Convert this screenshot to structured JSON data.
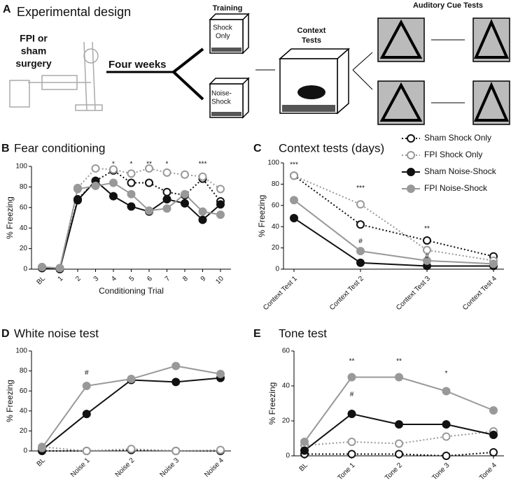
{
  "panel_a": {
    "letter": "A",
    "title": "Experimental design",
    "surgery": [
      "FPI or",
      "sham",
      "surgery"
    ],
    "interval": "Four weeks",
    "training": "Training",
    "shock_only": [
      "Shock",
      "Only"
    ],
    "noise_shock": [
      "Noise-",
      "Shock"
    ],
    "context": [
      "Context",
      "Tests"
    ],
    "auditory": "Auditory Cue Tests"
  },
  "chart_data": [
    {
      "type": "line",
      "panel": "B",
      "title": "Fear conditioning",
      "x_label": "Conditioning Trial",
      "y_label": "% Freezing",
      "categories": [
        "BL",
        "1",
        "2",
        "3",
        "4",
        "5",
        "6",
        "7",
        "8",
        "9",
        "10"
      ],
      "series": [
        {
          "name": "Sham Shock Only",
          "color": "#111111",
          "marker": "open",
          "dash": "dotted",
          "values": [
            2,
            1,
            68,
            86,
            96,
            84,
            84,
            75,
            72,
            88,
            66
          ]
        },
        {
          "name": "FPI Shock Only",
          "color": "#999999",
          "marker": "open",
          "dash": "dotted",
          "values": [
            2,
            1,
            79,
            98,
            97,
            93,
            98,
            94,
            92,
            90,
            78
          ]
        },
        {
          "name": "Sham Noise-Shock",
          "color": "#111111",
          "marker": "filled",
          "dash": "solid",
          "values": [
            1,
            0,
            67,
            86,
            71,
            61,
            56,
            68,
            64,
            48,
            63
          ]
        },
        {
          "name": "FPI Noise-Shock",
          "color": "#999999",
          "marker": "filled",
          "dash": "solid",
          "values": [
            2,
            1,
            78,
            81,
            84,
            73,
            57,
            59,
            73,
            56,
            53
          ]
        }
      ],
      "ylim": [
        0,
        100
      ],
      "yticks": [
        0,
        20,
        40,
        60,
        80,
        100
      ],
      "annotations": [
        {
          "text": "*",
          "category": "4",
          "y": 102
        },
        {
          "text": "*",
          "category": "5",
          "y": 102
        },
        {
          "text": "**",
          "category": "6",
          "y": 102
        },
        {
          "text": "*",
          "category": "7",
          "y": 102
        },
        {
          "text": "***",
          "category": "9",
          "y": 102
        }
      ]
    },
    {
      "type": "line",
      "panel": "C",
      "title": "Context tests (days)",
      "y_label": "% Freezing",
      "categories": [
        "Context Test 1",
        "Context Test 2",
        "Context Test 3",
        "Context Test 4"
      ],
      "series": [
        {
          "name": "Sham Shock Only",
          "color": "#111111",
          "marker": "open",
          "dash": "dotted",
          "values": [
            88,
            42,
            27,
            12
          ]
        },
        {
          "name": "FPI Shock Only",
          "color": "#999999",
          "marker": "open",
          "dash": "dotted",
          "values": [
            88,
            61,
            18,
            8
          ]
        },
        {
          "name": "Sham Noise-Shock",
          "color": "#111111",
          "marker": "filled",
          "dash": "solid",
          "values": [
            48,
            6,
            3,
            3
          ]
        },
        {
          "name": "FPI Noise-Shock",
          "color": "#999999",
          "marker": "filled",
          "dash": "solid",
          "values": [
            65,
            17,
            8,
            5
          ]
        }
      ],
      "ylim": [
        0,
        100
      ],
      "yticks": [
        0,
        20,
        40,
        60,
        80,
        100
      ],
      "annotations": [
        {
          "text": "***",
          "category": "Context Test 1",
          "y": 98
        },
        {
          "text": "***",
          "category": "Context Test 2",
          "y": 76
        },
        {
          "text": "**",
          "category": "Context Test 3",
          "y": 38
        },
        {
          "text": "#",
          "category": "Context Test 2",
          "y": 26
        },
        {
          "text": "#",
          "category": "Context Test 3",
          "y": 12
        }
      ]
    },
    {
      "type": "line",
      "panel": "D",
      "title": "White noise test",
      "y_label": "% Freezing",
      "categories": [
        "BL",
        "Noise 1",
        "Noise 2",
        "Noise 3",
        "Noise 4"
      ],
      "series": [
        {
          "name": "Sham Shock Only",
          "color": "#111111",
          "marker": "open",
          "dash": "dotted",
          "values": [
            0,
            0,
            1,
            0,
            0
          ]
        },
        {
          "name": "FPI Shock Only",
          "color": "#999999",
          "marker": "open",
          "dash": "dotted",
          "values": [
            4,
            0,
            2,
            0,
            1
          ]
        },
        {
          "name": "Sham Noise-Shock",
          "color": "#111111",
          "marker": "filled",
          "dash": "solid",
          "values": [
            1,
            37,
            71,
            69,
            73
          ]
        },
        {
          "name": "FPI Noise-Shock",
          "color": "#999999",
          "marker": "filled",
          "dash": "solid",
          "values": [
            3,
            65,
            72,
            85,
            77
          ]
        }
      ],
      "ylim": [
        0,
        100
      ],
      "yticks": [
        0,
        20,
        40,
        60,
        80,
        100
      ],
      "annotations": [
        {
          "text": "#",
          "category": "Noise 1",
          "y": 78
        }
      ]
    },
    {
      "type": "line",
      "panel": "E",
      "title": "Tone test",
      "y_label": "% Freezing",
      "categories": [
        "BL",
        "Tone 1",
        "Tone 2",
        "Tone 3",
        "Tone 4"
      ],
      "series": [
        {
          "name": "Sham Shock Only",
          "color": "#111111",
          "marker": "open",
          "dash": "dotted",
          "values": [
            1,
            1,
            1,
            0,
            2
          ]
        },
        {
          "name": "FPI Shock Only",
          "color": "#999999",
          "marker": "open",
          "dash": "dotted",
          "values": [
            6,
            8,
            7,
            11,
            14
          ]
        },
        {
          "name": "Sham Noise-Shock",
          "color": "#111111",
          "marker": "filled",
          "dash": "solid",
          "values": [
            3,
            24,
            18,
            18,
            12
          ]
        },
        {
          "name": "FPI Noise-Shock",
          "color": "#999999",
          "marker": "filled",
          "dash": "solid",
          "values": [
            8,
            45,
            45,
            37,
            26
          ]
        }
      ],
      "ylim": [
        0,
        60
      ],
      "yticks": [
        0,
        20,
        40,
        60
      ],
      "annotations": [
        {
          "text": "**",
          "category": "Tone 1",
          "y": 54
        },
        {
          "text": "**",
          "category": "Tone 2",
          "y": 54
        },
        {
          "text": "*",
          "category": "Tone 3",
          "y": 47
        },
        {
          "text": "#",
          "category": "Tone 1",
          "y": 35
        }
      ]
    }
  ]
}
